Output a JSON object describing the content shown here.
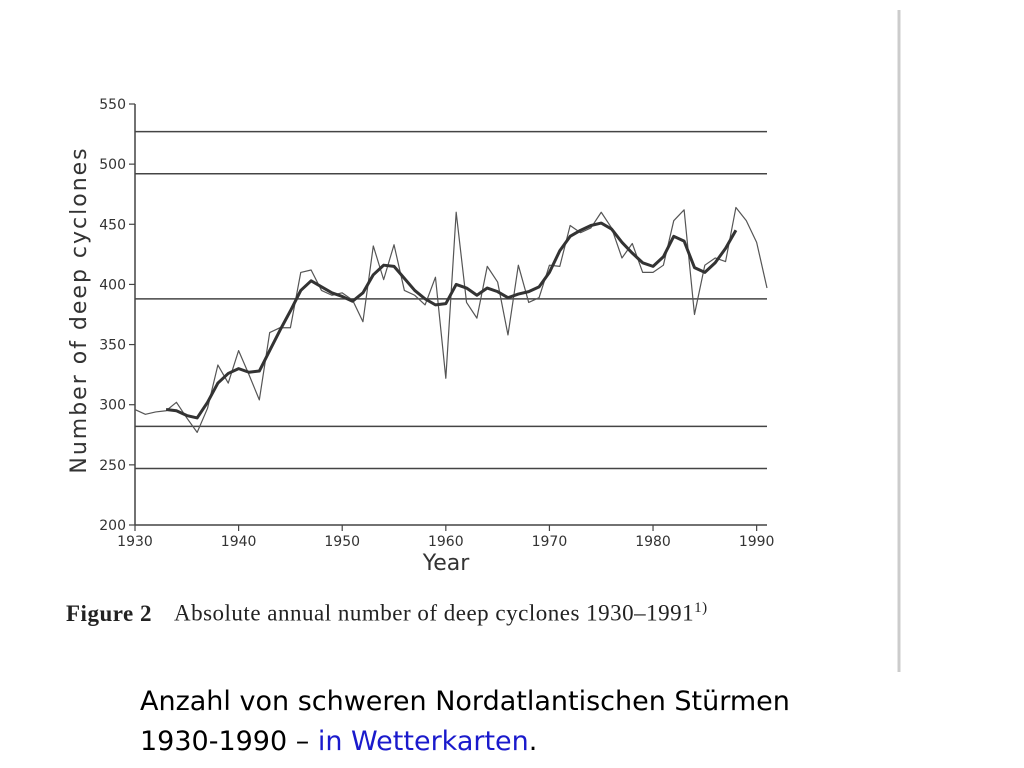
{
  "chart_data": {
    "type": "line",
    "xlabel": "Year",
    "ylabel": "Number of deep cyclones",
    "x": [
      1930,
      1931,
      1932,
      1933,
      1934,
      1935,
      1936,
      1937,
      1938,
      1939,
      1940,
      1941,
      1942,
      1943,
      1944,
      1945,
      1946,
      1947,
      1948,
      1949,
      1950,
      1951,
      1952,
      1953,
      1954,
      1955,
      1956,
      1957,
      1958,
      1959,
      1960,
      1961,
      1962,
      1963,
      1964,
      1965,
      1966,
      1967,
      1968,
      1969,
      1970,
      1971,
      1972,
      1973,
      1974,
      1975,
      1976,
      1977,
      1978,
      1979,
      1980,
      1981,
      1982,
      1983,
      1984,
      1985,
      1986,
      1987,
      1988,
      1989,
      1990,
      1991
    ],
    "series": [
      {
        "color": "#555555",
        "values": [
          296,
          292,
          294,
          295,
          302,
          289,
          277,
          297,
          333,
          318,
          345,
          325,
          304,
          360,
          364,
          364,
          410,
          412,
          395,
          391,
          393,
          387,
          369,
          432,
          404,
          433,
          395,
          391,
          383,
          406,
          322,
          460,
          385,
          372,
          415,
          402,
          358,
          416,
          385,
          389,
          416,
          415,
          449,
          443,
          447,
          460,
          447,
          422,
          434,
          410,
          410,
          416,
          453,
          462,
          375,
          416,
          422,
          419,
          464,
          453,
          435,
          397
        ]
      },
      {
        "color": "#333333",
        "values": [
          null,
          null,
          null,
          296,
          295,
          291,
          289,
          302,
          318,
          326,
          330,
          327,
          328,
          345,
          362,
          378,
          395,
          403,
          398,
          393,
          390,
          386,
          393,
          408,
          416,
          415,
          405,
          395,
          388,
          383,
          384,
          400,
          397,
          391,
          397,
          394,
          389,
          392,
          394,
          398,
          410,
          428,
          440,
          445,
          449,
          451,
          446,
          435,
          426,
          418,
          415,
          423,
          440,
          436,
          414,
          410,
          418,
          430,
          445,
          null,
          null,
          null
        ]
      }
    ],
    "hlines": [
      527,
      492,
      388,
      282,
      247
    ],
    "xlim": [
      1930,
      1991
    ],
    "xticks": [
      1930,
      1940,
      1950,
      1960,
      1970,
      1980,
      1990
    ],
    "ylim": [
      200,
      550
    ],
    "yticks": [
      200,
      250,
      300,
      350,
      400,
      450,
      500,
      550
    ],
    "caption_label": "Figure 2",
    "caption": "Absolute annual number of deep cyclones 1930–1991",
    "caption_note": "1)"
  },
  "slide_text": {
    "line1": "Anzahl von schweren Nordatlantischen Stürmen",
    "line2": "1930-1990 –",
    "highlight": "in Wetterkarten",
    "end": "."
  }
}
